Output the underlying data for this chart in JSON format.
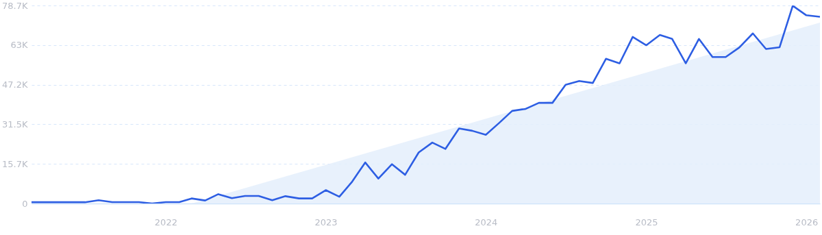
{
  "chart_data": {
    "type": "line",
    "x": [
      "2021-03",
      "2021-04",
      "2021-05",
      "2021-06",
      "2021-07",
      "2021-08",
      "2021-09",
      "2021-10",
      "2021-11",
      "2021-12",
      "2022-01",
      "2022-02",
      "2022-03",
      "2022-04",
      "2022-05",
      "2022-06",
      "2022-07",
      "2022-08",
      "2022-09",
      "2022-10",
      "2022-11",
      "2022-12",
      "2023-01",
      "2023-02",
      "2023-03",
      "2023-04",
      "2023-05",
      "2023-06",
      "2023-07",
      "2023-08",
      "2023-09",
      "2023-10",
      "2023-11",
      "2023-12",
      "2024-01",
      "2024-02",
      "2024-03",
      "2024-04",
      "2024-05",
      "2024-06",
      "2024-07",
      "2024-08",
      "2024-09",
      "2024-10",
      "2024-11",
      "2024-12",
      "2025-01",
      "2025-02",
      "2025-03",
      "2025-04",
      "2025-05",
      "2025-06",
      "2025-07",
      "2025-08",
      "2025-09",
      "2025-10",
      "2025-11",
      "2025-12",
      "2026-01",
      "2026-02"
    ],
    "series": [
      {
        "type": "area",
        "x": [
          "2022-03",
          "2026-02"
        ],
        "values": [
          0,
          71900
        ],
        "color": "#e4eefb"
      },
      {
        "color": "#2d5ee3",
        "values": [
          500,
          500,
          500,
          500,
          500,
          1300,
          550,
          550,
          550,
          0,
          550,
          550,
          2000,
          1200,
          3700,
          2100,
          3000,
          3000,
          1300,
          2900,
          2000,
          2000,
          5300,
          2700,
          8400,
          16300,
          9900,
          15600,
          11400,
          20300,
          24200,
          21700,
          29800,
          28900,
          27300,
          32100,
          36800,
          37600,
          40000,
          40000,
          47200,
          48700,
          47900,
          57500,
          55700,
          66200,
          62900,
          67000,
          65400,
          55700,
          65400,
          58200,
          58200,
          62000,
          67600,
          61400,
          62100,
          78600,
          74800,
          74200
        ]
      }
    ],
    "xlim": [
      "2021-03",
      "2026-02"
    ],
    "xticks": [
      {
        "value": "2022-01",
        "label": "2022"
      },
      {
        "value": "2023-01",
        "label": "2023"
      },
      {
        "value": "2024-01",
        "label": "2024"
      },
      {
        "value": "2025-01",
        "label": "2025"
      },
      {
        "value": "2026-01",
        "label": "2026"
      }
    ],
    "ylim": [
      0,
      78700
    ],
    "yticks": [
      {
        "value": 0,
        "label": "0"
      },
      {
        "value": 15700,
        "label": "15.7K"
      },
      {
        "value": 31500,
        "label": "31.5K"
      },
      {
        "value": 47200,
        "label": "47.2K"
      },
      {
        "value": 63000,
        "label": "63K"
      },
      {
        "value": 78700,
        "label": "78.7K"
      }
    ],
    "grid": "y",
    "line_style": "solid"
  }
}
